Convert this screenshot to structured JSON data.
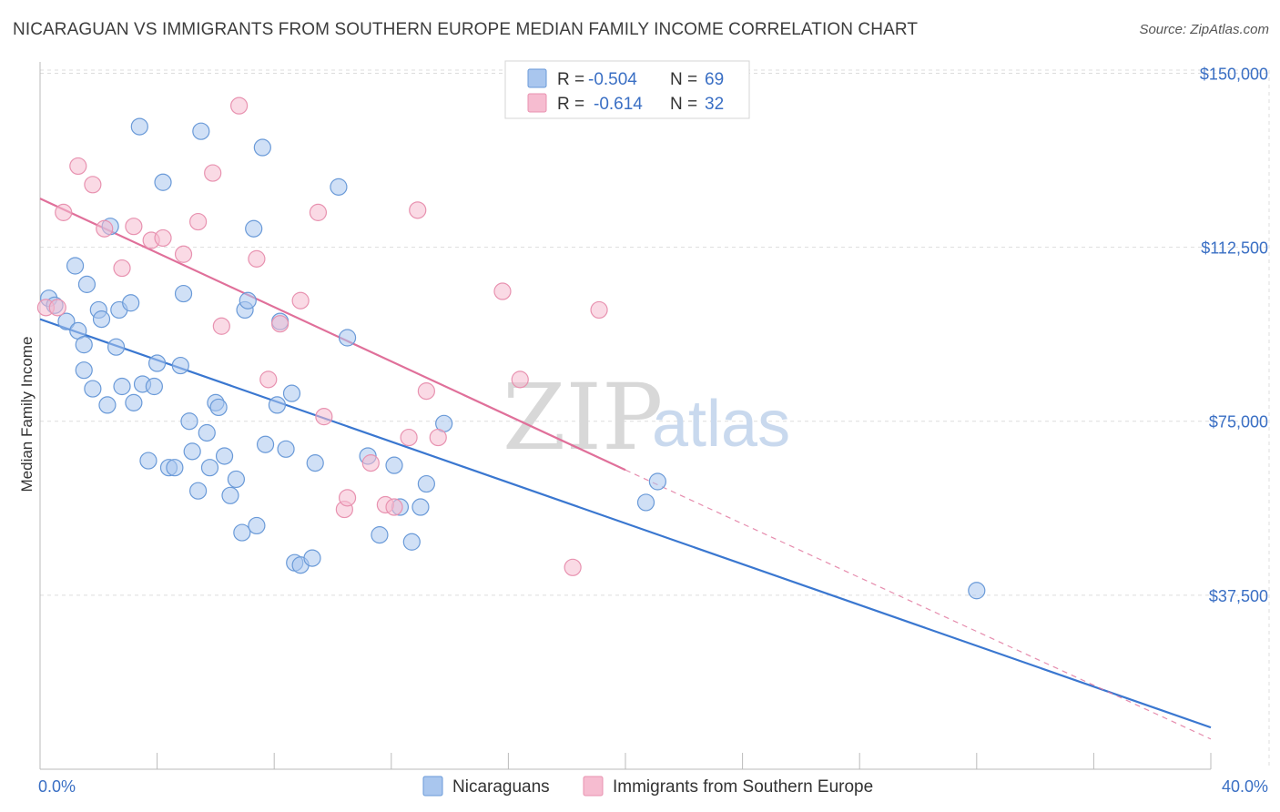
{
  "title": "NICARAGUAN VS IMMIGRANTS FROM SOUTHERN EUROPE MEDIAN FAMILY INCOME CORRELATION CHART",
  "source": "Source: ZipAtlas.com",
  "watermark": {
    "zip": "ZIP",
    "atlas": "atlas"
  },
  "colors": {
    "blue": "#3a77d0",
    "blue_fill": "#a9c6ee",
    "pink": "#e0709a",
    "pink_fill": "#f6bcd0",
    "grid": "#dddddd",
    "tick_text": "#3a6fc4"
  },
  "chart_data": {
    "type": "scatter",
    "xlabel": "",
    "ylabel": "Median Family Income",
    "xlim": [
      0,
      40
    ],
    "ylim": [
      0,
      155000
    ],
    "x_tick_labels": [
      {
        "value": 0,
        "label": "0.0%"
      },
      {
        "value": 40,
        "label": "40.0%"
      }
    ],
    "y_ticks": [
      {
        "value": 37500,
        "label": "$37,500"
      },
      {
        "value": 75000,
        "label": "$75,000"
      },
      {
        "value": 112500,
        "label": "$112,500"
      },
      {
        "value": 150000,
        "label": "$150,000"
      }
    ],
    "legend": {
      "placement": "top-center",
      "rows": [
        {
          "r_label": "R =",
          "r_value": "-0.504",
          "n_label": "N =",
          "n_value": "69"
        },
        {
          "r_label": "R =",
          "r_value": "-0.614",
          "n_label": "N =",
          "n_value": "32"
        }
      ]
    },
    "series": [
      {
        "name": "Nicaraguans",
        "color": "#3a77d0",
        "trend": {
          "x": [
            0,
            40
          ],
          "y": [
            97000,
            9000
          ],
          "style": "solid"
        },
        "points": [
          [
            0.3,
            101500
          ],
          [
            0.5,
            100000
          ],
          [
            0.9,
            96500
          ],
          [
            1.2,
            108500
          ],
          [
            1.3,
            94500
          ],
          [
            1.5,
            86000
          ],
          [
            1.5,
            91500
          ],
          [
            1.6,
            104500
          ],
          [
            1.8,
            82000
          ],
          [
            2.0,
            99000
          ],
          [
            2.1,
            97000
          ],
          [
            2.3,
            78500
          ],
          [
            2.4,
            117000
          ],
          [
            2.6,
            91000
          ],
          [
            2.7,
            99000
          ],
          [
            2.8,
            82500
          ],
          [
            3.1,
            100500
          ],
          [
            3.2,
            79000
          ],
          [
            3.4,
            138500
          ],
          [
            3.5,
            83000
          ],
          [
            3.7,
            66500
          ],
          [
            3.9,
            82500
          ],
          [
            4.0,
            87500
          ],
          [
            4.2,
            126500
          ],
          [
            4.4,
            65000
          ],
          [
            4.6,
            65000
          ],
          [
            4.8,
            87000
          ],
          [
            4.9,
            102500
          ],
          [
            5.1,
            75000
          ],
          [
            5.2,
            68500
          ],
          [
            5.4,
            60000
          ],
          [
            5.5,
            137500
          ],
          [
            5.7,
            72500
          ],
          [
            5.8,
            65000
          ],
          [
            6.0,
            79000
          ],
          [
            6.1,
            78000
          ],
          [
            6.3,
            67500
          ],
          [
            6.5,
            59000
          ],
          [
            6.7,
            62500
          ],
          [
            6.9,
            51000
          ],
          [
            7.0,
            99000
          ],
          [
            7.1,
            101000
          ],
          [
            7.3,
            116500
          ],
          [
            7.4,
            52500
          ],
          [
            7.6,
            134000
          ],
          [
            7.7,
            70000
          ],
          [
            8.1,
            78500
          ],
          [
            8.2,
            96500
          ],
          [
            8.4,
            69000
          ],
          [
            8.6,
            81000
          ],
          [
            8.7,
            44500
          ],
          [
            8.9,
            44000
          ],
          [
            9.3,
            45500
          ],
          [
            9.4,
            66000
          ],
          [
            10.2,
            125500
          ],
          [
            10.5,
            93000
          ],
          [
            11.2,
            67500
          ],
          [
            11.6,
            50500
          ],
          [
            12.1,
            65500
          ],
          [
            12.3,
            56500
          ],
          [
            12.7,
            49000
          ],
          [
            13.0,
            56500
          ],
          [
            13.2,
            61500
          ],
          [
            13.8,
            74500
          ],
          [
            20.7,
            57500
          ],
          [
            21.1,
            62000
          ],
          [
            32.0,
            38500
          ]
        ]
      },
      {
        "name": "Immigrants from Southern Europe",
        "color": "#e0709a",
        "trend": {
          "x": [
            0,
            20
          ],
          "y": [
            123000,
            64500
          ],
          "style": "solid",
          "extended_x": [
            20,
            40
          ],
          "extended_y": [
            64500,
            6500
          ],
          "extended_style": "dashed"
        },
        "points": [
          [
            0.2,
            99500
          ],
          [
            0.6,
            99500
          ],
          [
            0.8,
            120000
          ],
          [
            1.3,
            130000
          ],
          [
            1.8,
            126000
          ],
          [
            2.2,
            116500
          ],
          [
            2.8,
            108000
          ],
          [
            3.2,
            117000
          ],
          [
            3.8,
            114000
          ],
          [
            4.2,
            114500
          ],
          [
            4.9,
            111000
          ],
          [
            5.4,
            118000
          ],
          [
            5.9,
            128500
          ],
          [
            6.2,
            95500
          ],
          [
            6.8,
            143000
          ],
          [
            7.4,
            110000
          ],
          [
            7.8,
            84000
          ],
          [
            8.2,
            96000
          ],
          [
            8.9,
            101000
          ],
          [
            9.5,
            120000
          ],
          [
            9.7,
            76000
          ],
          [
            10.4,
            56000
          ],
          [
            10.5,
            58500
          ],
          [
            11.3,
            66000
          ],
          [
            11.8,
            57000
          ],
          [
            12.1,
            56500
          ],
          [
            12.6,
            71500
          ],
          [
            12.9,
            120500
          ],
          [
            13.2,
            81500
          ],
          [
            13.6,
            71500
          ],
          [
            15.8,
            103000
          ],
          [
            16.4,
            84000
          ],
          [
            18.2,
            43500
          ],
          [
            19.1,
            99000
          ]
        ]
      }
    ]
  }
}
